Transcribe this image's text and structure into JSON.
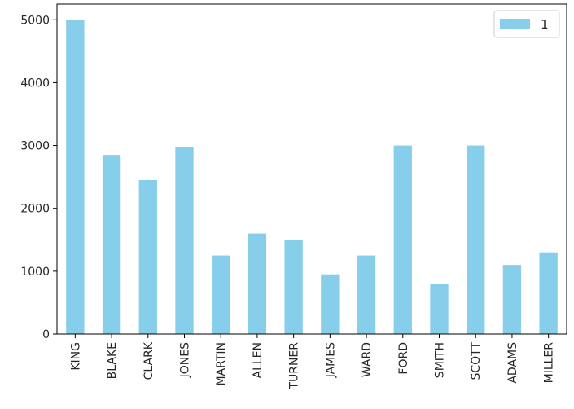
{
  "chart_data": {
    "type": "bar",
    "categories": [
      "KING",
      "BLAKE",
      "CLARK",
      "JONES",
      "MARTIN",
      "ALLEN",
      "TURNER",
      "JAMES",
      "WARD",
      "FORD",
      "SMITH",
      "SCOTT",
      "ADAMS",
      "MILLER"
    ],
    "series": [
      {
        "name": "1",
        "values": [
          5000,
          2850,
          2450,
          2975,
          1250,
          1600,
          1500,
          950,
          1250,
          3000,
          800,
          3000,
          1100,
          1300
        ]
      }
    ],
    "yticks": [
      0,
      1000,
      2000,
      3000,
      4000,
      5000
    ],
    "ylim": [
      0,
      5250
    ],
    "title": "",
    "xlabel": "",
    "ylabel": "",
    "legend_position": "top-right",
    "grid": false,
    "colors": {
      "bar": "#87ceeb",
      "axis": "#000000",
      "text": "#262626"
    }
  }
}
